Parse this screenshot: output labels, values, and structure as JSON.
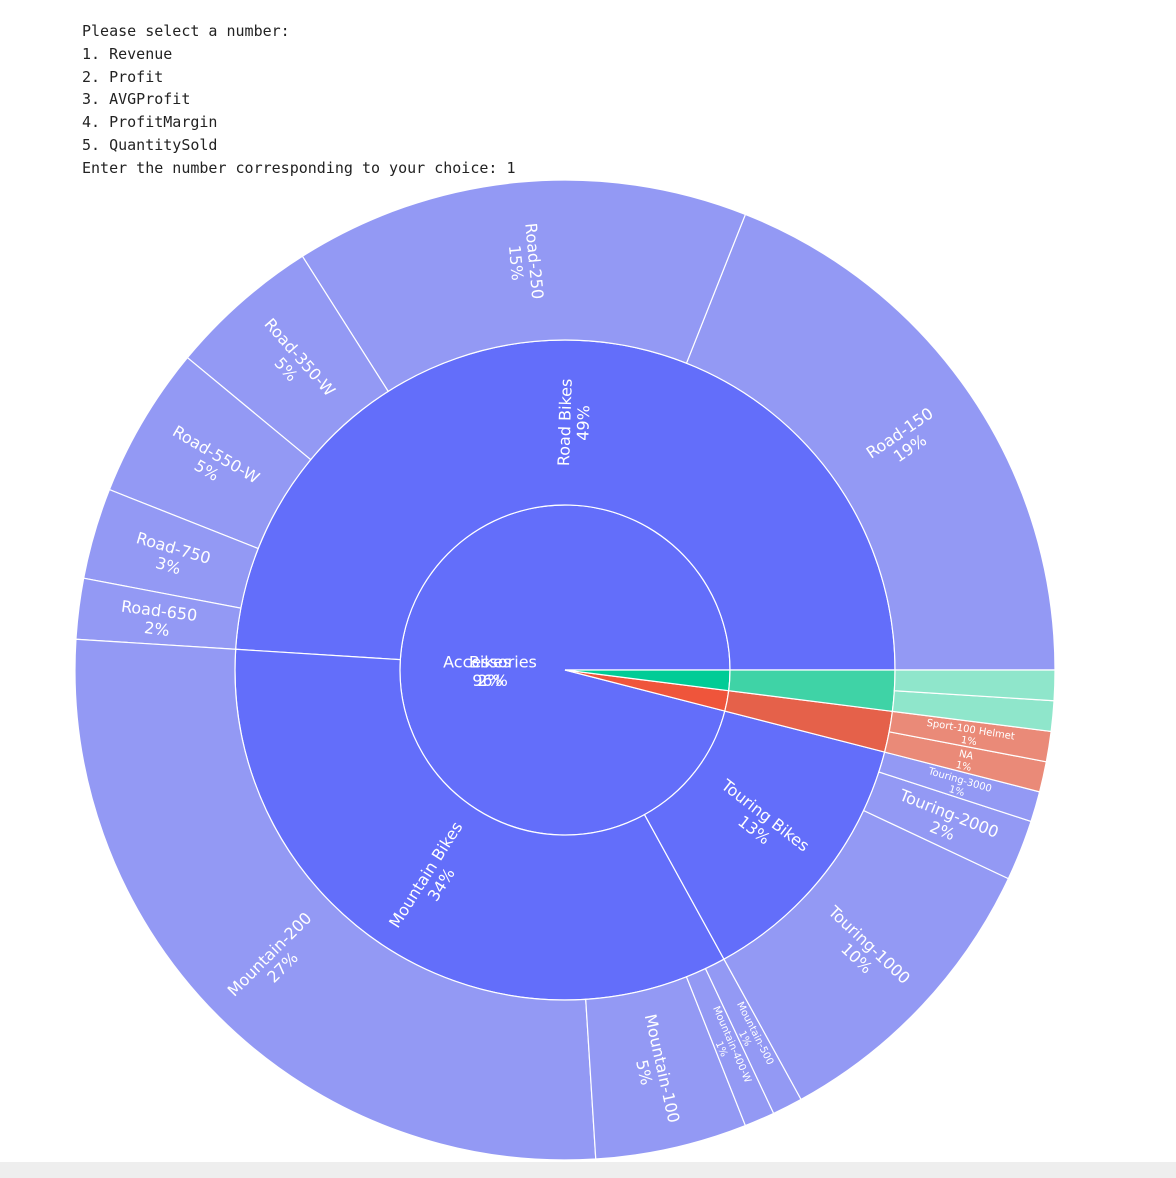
{
  "prompt": {
    "lines": [
      "Please select a number:",
      "1. Revenue",
      "2. Profit",
      "3. AVGProfit",
      "4. ProfitMargin",
      "5. QuantitySold",
      "Enter the number corresponding to your choice: 1"
    ]
  },
  "chart_data": {
    "type": "sunburst",
    "nodes": [
      {
        "label": "Bikes",
        "value": 96,
        "value_label": "96%",
        "color": "#636efa",
        "children": [
          {
            "label": "Road Bikes",
            "value": 49,
            "value_label": "49%",
            "color": "#636efa",
            "children": [
              {
                "label": "Road-150",
                "value": 19,
                "value_label": "19%",
                "color": "#9399f4"
              },
              {
                "label": "Road-250",
                "value": 15,
                "value_label": "15%",
                "color": "#9399f4"
              },
              {
                "label": "Road-350-W",
                "value": 5,
                "value_label": "5%",
                "color": "#9399f4"
              },
              {
                "label": "Road-550-W",
                "value": 5,
                "value_label": "5%",
                "color": "#9399f4"
              },
              {
                "label": "Road-750",
                "value": 3,
                "value_label": "3%",
                "color": "#9399f4"
              },
              {
                "label": "Road-650",
                "value": 2,
                "value_label": "2%",
                "color": "#9399f4"
              }
            ]
          },
          {
            "label": "Mountain Bikes",
            "value": 34,
            "value_label": "34%",
            "color": "#636efa",
            "children": [
              {
                "label": "Mountain-200",
                "value": 27,
                "value_label": "27%",
                "color": "#9399f4"
              },
              {
                "label": "Mountain-100",
                "value": 5,
                "value_label": "5%",
                "color": "#9399f4"
              },
              {
                "label": "Mountain-400-W",
                "value": 1,
                "value_label": "1%",
                "color": "#9399f4"
              },
              {
                "label": "Mountain-500",
                "value": 1,
                "value_label": "1%",
                "color": "#9399f4"
              }
            ]
          },
          {
            "label": "Touring Bikes",
            "value": 13,
            "value_label": "13%",
            "color": "#636efa",
            "children": [
              {
                "label": "Touring-1000",
                "value": 10,
                "value_label": "10%",
                "color": "#9399f4"
              },
              {
                "label": "Touring-2000",
                "value": 2,
                "value_label": "2%",
                "color": "#9399f4"
              },
              {
                "label": "Touring-3000",
                "value": 1,
                "value_label": "1%",
                "color": "#9399f4"
              }
            ]
          }
        ]
      },
      {
        "label": "Accessories",
        "value": 2,
        "value_label": "2%",
        "color": "#ef553b",
        "children": [
          {
            "label": null,
            "value": 2,
            "color": "#e5614a",
            "children": [
              {
                "label": "NA",
                "value": 1,
                "value_label": "1%",
                "color": "#ea8a78"
              },
              {
                "label": "Sport-100 Helmet",
                "value": 1,
                "value_label": "1%",
                "color": "#ea8a78"
              }
            ]
          }
        ]
      },
      {
        "label": null,
        "value": 2,
        "color": "#00cc96",
        "children": [
          {
            "label": null,
            "value": 2,
            "color": "#3fd3a6",
            "children": [
              {
                "label": null,
                "value": 1,
                "color": "#8fe6cb"
              },
              {
                "label": null,
                "value": 1,
                "color": "#8fe6cb"
              }
            ]
          }
        ]
      }
    ]
  }
}
